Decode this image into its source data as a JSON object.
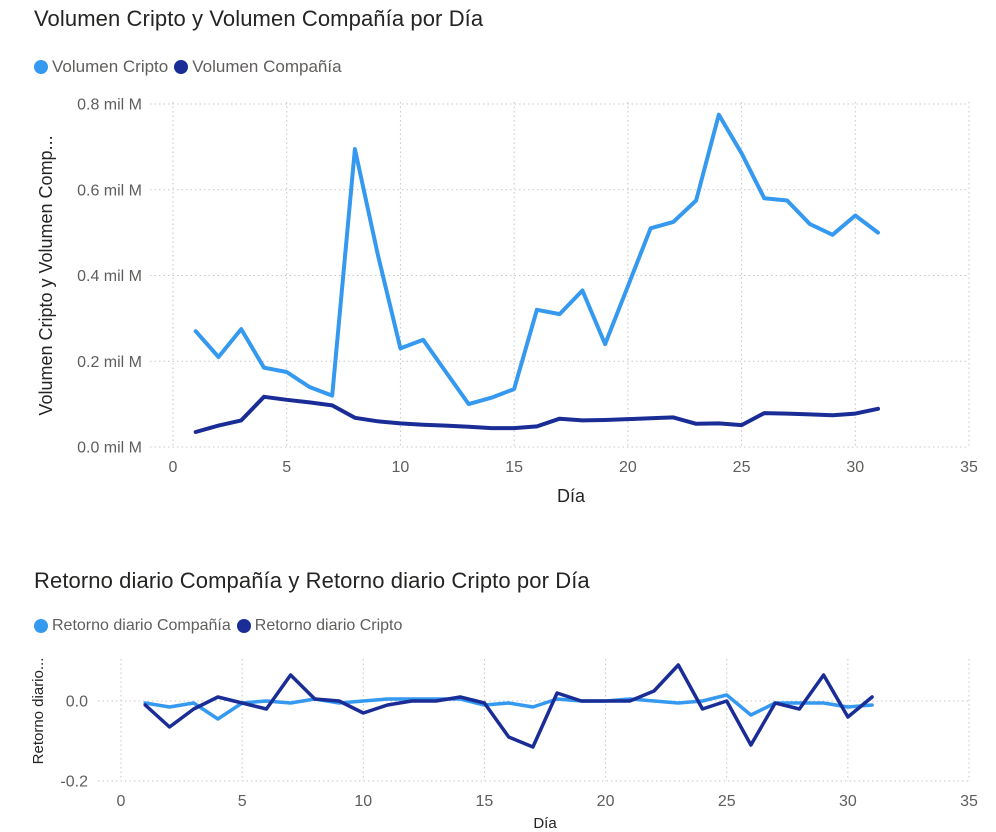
{
  "charts": [
    {
      "title": "Volumen Cripto y Volumen Compañía por Día",
      "legend": [
        "Volumen Cripto",
        "Volumen Compañía"
      ],
      "colors": {
        "Volumen Cripto": "#3599F0",
        "Volumen Compañía": "#1A2D96"
      },
      "xlabel": "Día",
      "ylabel": "Volumen Cripto y Volumen Comp...",
      "x_ticks": [
        "0",
        "5",
        "10",
        "15",
        "20",
        "25",
        "30",
        "35"
      ],
      "y_ticks": [
        "0.0 mil M",
        "0.2 mil M",
        "0.4 mil M",
        "0.6 mil M",
        "0.8 mil M"
      ]
    },
    {
      "title": "Retorno diario Compañía y Retorno diario Cripto por Día",
      "legend": [
        "Retorno diario Compañía",
        "Retorno diario Cripto"
      ],
      "colors": {
        "Retorno diario Compañía": "#3599F0",
        "Retorno diario Cripto": "#1A2D96"
      },
      "xlabel": "Día",
      "ylabel": "Retorno diario...",
      "x_ticks": [
        "0",
        "5",
        "10",
        "15",
        "20",
        "25",
        "30",
        "35"
      ],
      "y_ticks": [
        "-0.2",
        "0.0"
      ]
    }
  ],
  "chart_data": [
    {
      "type": "line",
      "title": "Volumen Cripto y Volumen Compañía por Día",
      "xlabel": "Día",
      "ylabel": "Volumen Cripto y Volumen Comp...",
      "xlim": [
        0,
        35
      ],
      "ylim": [
        0,
        0.8
      ],
      "y_unit": "mil M",
      "grid": true,
      "legend_position": "top-left",
      "x": [
        1,
        2,
        3,
        4,
        5,
        6,
        7,
        8,
        9,
        10,
        11,
        12,
        13,
        14,
        15,
        16,
        17,
        18,
        19,
        20,
        21,
        22,
        23,
        24,
        25,
        26,
        27,
        28,
        29,
        30,
        31
      ],
      "series": [
        {
          "name": "Volumen Cripto",
          "color": "#3599F0",
          "values": [
            0.27,
            0.21,
            0.275,
            0.185,
            0.175,
            0.14,
            0.12,
            0.695,
            0.45,
            0.23,
            0.25,
            0.175,
            0.1,
            0.115,
            0.135,
            0.32,
            0.31,
            0.365,
            0.24,
            0.375,
            0.51,
            0.525,
            0.575,
            0.775,
            0.685,
            0.58,
            0.575,
            0.52,
            0.495,
            0.54,
            0.5
          ]
        },
        {
          "name": "Volumen Compañía",
          "color": "#1A2D96",
          "values": [
            0.035,
            0.05,
            0.062,
            0.117,
            0.11,
            0.104,
            0.097,
            0.068,
            0.06,
            0.055,
            0.052,
            0.05,
            0.047,
            0.044,
            0.044,
            0.048,
            0.066,
            0.062,
            0.063,
            0.065,
            0.067,
            0.069,
            0.054,
            0.055,
            0.051,
            0.079,
            0.078,
            0.076,
            0.074,
            0.078,
            0.089
          ]
        }
      ]
    },
    {
      "type": "line",
      "title": "Retorno diario Compañía y Retorno diario Cripto por Día",
      "xlabel": "Día",
      "ylabel": "Retorno diario...",
      "xlim": [
        0,
        35
      ],
      "ylim": [
        -0.2,
        0.1
      ],
      "grid": true,
      "legend_position": "top-left",
      "x": [
        1,
        2,
        3,
        4,
        5,
        6,
        7,
        8,
        9,
        10,
        11,
        12,
        13,
        14,
        15,
        16,
        17,
        18,
        19,
        20,
        21,
        22,
        23,
        24,
        25,
        26,
        27,
        28,
        29,
        30,
        31
      ],
      "series": [
        {
          "name": "Retorno diario Compañía",
          "color": "#3599F0",
          "values": [
            -0.005,
            -0.015,
            -0.005,
            -0.045,
            -0.005,
            0.0,
            -0.005,
            0.005,
            -0.005,
            0.0,
            0.005,
            0.005,
            0.005,
            0.005,
            -0.01,
            -0.005,
            -0.015,
            0.005,
            0.0,
            0.0,
            0.005,
            0.0,
            -0.005,
            0.0,
            0.015,
            -0.035,
            -0.005,
            -0.005,
            -0.005,
            -0.015,
            -0.01
          ]
        },
        {
          "name": "Retorno diario Cripto",
          "color": "#1A2D96",
          "values": [
            -0.01,
            -0.065,
            -0.02,
            0.01,
            -0.005,
            -0.02,
            0.065,
            0.005,
            0.0,
            -0.03,
            -0.01,
            0.0,
            0.0,
            0.01,
            -0.005,
            -0.09,
            -0.115,
            0.02,
            0.0,
            0.0,
            0.0,
            0.025,
            0.09,
            -0.02,
            0.0,
            -0.11,
            -0.005,
            -0.02,
            0.065,
            -0.04,
            0.01
          ]
        }
      ]
    }
  ]
}
